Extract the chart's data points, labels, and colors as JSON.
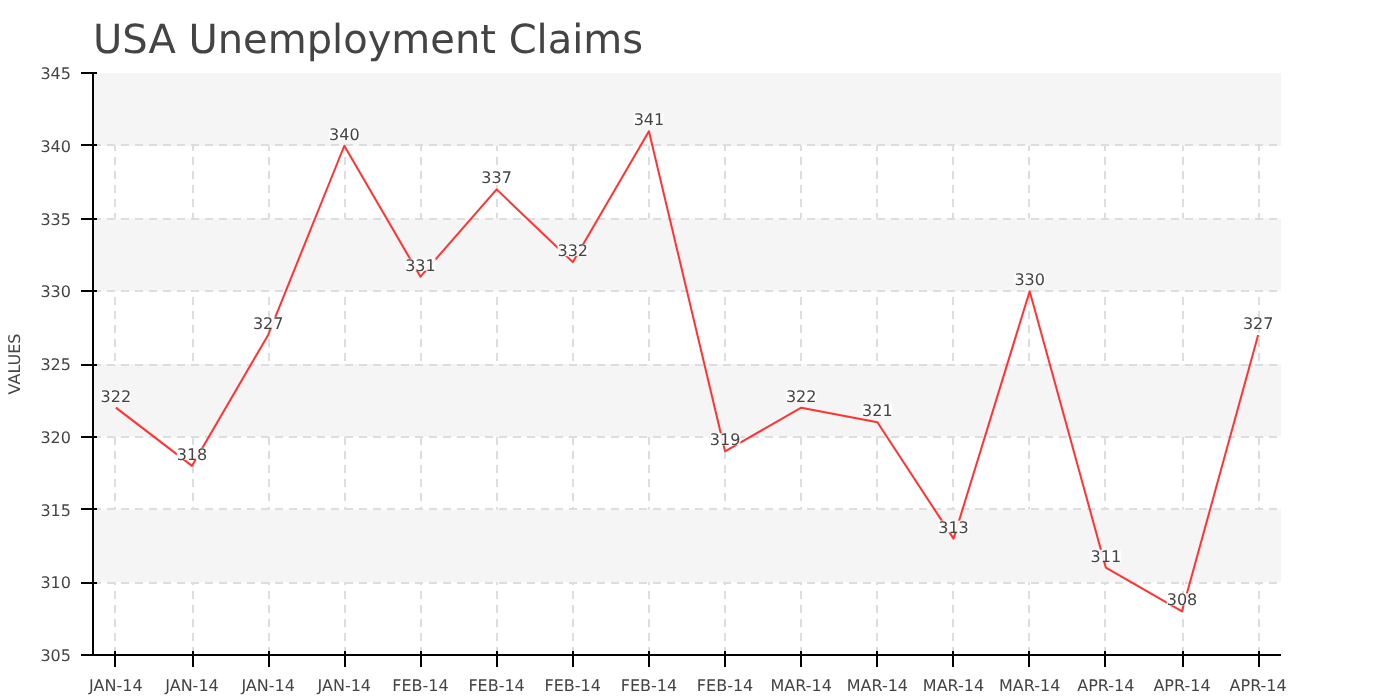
{
  "chart_data": {
    "type": "line",
    "title": "USA Unemployment Claims",
    "ylabel": "VALUES",
    "categories": [
      "JAN-14",
      "JAN-14",
      "JAN-14",
      "JAN-14",
      "FEB-14",
      "FEB-14",
      "FEB-14",
      "FEB-14",
      "FEB-14",
      "MAR-14",
      "MAR-14",
      "MAR-14",
      "MAR-14",
      "APR-14",
      "APR-14",
      "APR-14"
    ],
    "series": [
      {
        "color": "#ff3333",
        "values": [
          322,
          318,
          327,
          340,
          331,
          337,
          332,
          341,
          319,
          322,
          321,
          313,
          330,
          311,
          308,
          327
        ]
      }
    ],
    "ylim": [
      305,
      345
    ],
    "yticks": [
      305,
      310,
      315,
      320,
      325,
      330,
      335,
      340,
      345
    ],
    "grid": true,
    "data_labels": true,
    "marker": "none",
    "line_style": "solid"
  }
}
